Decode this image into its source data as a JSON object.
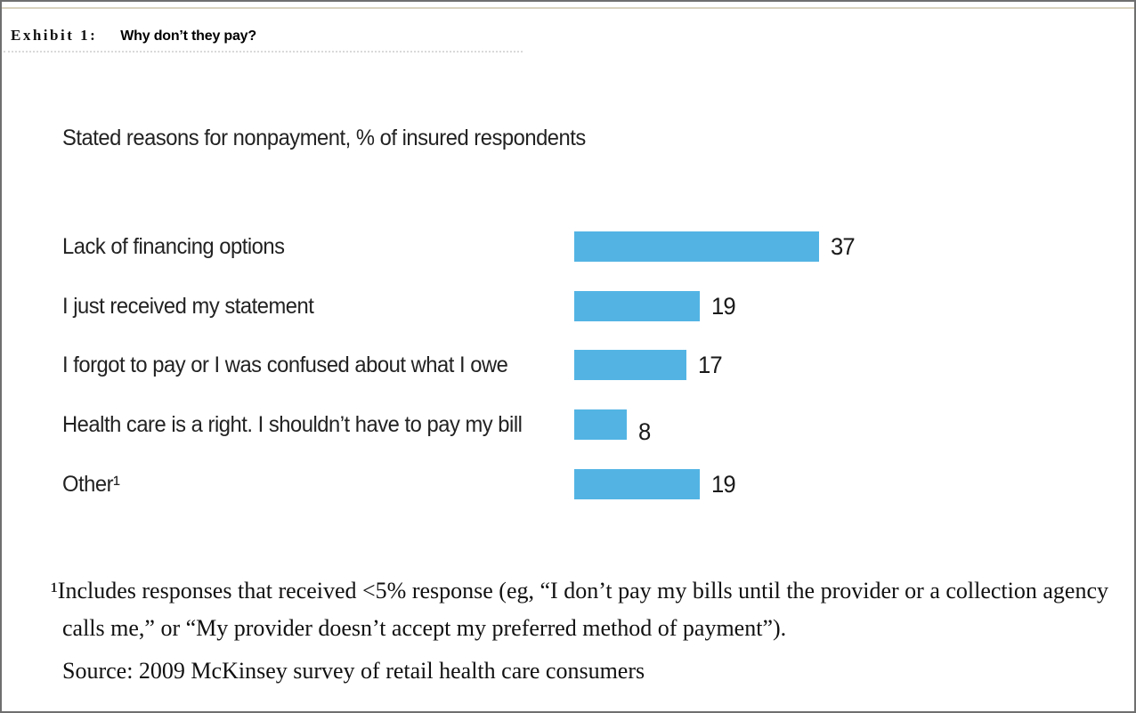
{
  "header": {
    "exhibit_label": "Exhibit 1:",
    "exhibit_title": "Why don’t they pay?"
  },
  "chart_data": {
    "type": "bar",
    "orientation": "horizontal",
    "title": "Stated reasons for nonpayment, % of insured respondents",
    "categories": [
      "Lack of financing options",
      "I just received my statement",
      "I forgot to pay or I was confused about what I owe",
      "Health care is a right. I shouldn’t have to pay my bill",
      "Other¹"
    ],
    "values": [
      37,
      19,
      17,
      8,
      19
    ],
    "value_unit": "% of insured respondents",
    "bar_color": "#53b4e4",
    "xlim": [
      0,
      40
    ],
    "grid": false,
    "legend": false
  },
  "footnote": "¹Includes responses that received <5% response (eg, “I don’t pay my bills until the provider or a collection agency calls me,” or “My provider doesn’t accept my preferred method of payment”).",
  "source": "Source: 2009 McKinsey survey of retail health care consumers"
}
